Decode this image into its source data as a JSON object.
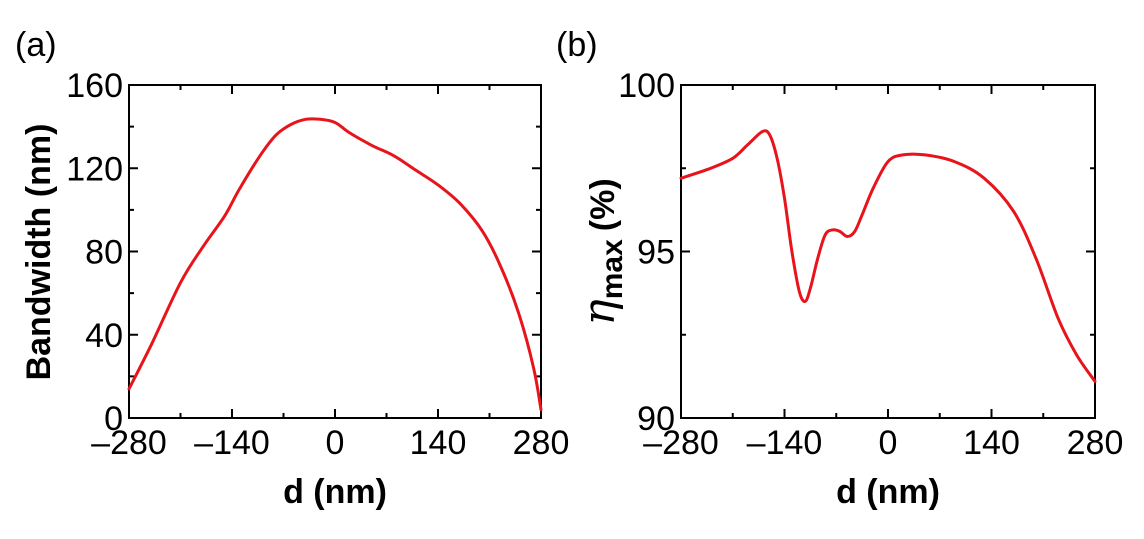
{
  "colors": {
    "line": "#e8141b",
    "axis": "#000000"
  },
  "chart_data": [
    {
      "type": "line",
      "panel_label": "(a)",
      "xlabel": "d (nm)",
      "ylabel": "Bandwidth (nm)",
      "xlim": [
        -280,
        280
      ],
      "ylim": [
        0,
        160
      ],
      "xticks": [
        -280,
        -140,
        0,
        140,
        280
      ],
      "xtick_labels": [
        "–280",
        "–140",
        "0",
        "140",
        "280"
      ],
      "yticks": [
        0,
        40,
        80,
        120,
        160
      ],
      "ytick_labels": [
        "0",
        "40",
        "80",
        "120",
        "160"
      ],
      "series": [
        {
          "name": "Bandwidth",
          "x": [
            -280,
            -250,
            -210,
            -180,
            -150,
            -130,
            -100,
            -80,
            -60,
            -40,
            -20,
            0,
            20,
            50,
            80,
            110,
            140,
            170,
            200,
            225,
            250,
            270,
            280
          ],
          "y": [
            14,
            35,
            65,
            82,
            97,
            110,
            127,
            136,
            141,
            143.5,
            143.5,
            142,
            137,
            131,
            126,
            119,
            112,
            103,
            90,
            73,
            50,
            24,
            4
          ]
        }
      ]
    },
    {
      "type": "line",
      "panel_label": "(b)",
      "xlabel": "d (nm)",
      "ylabel": "ηmax (%)",
      "ylabel_symbol": "η",
      "ylabel_subscript": "max",
      "ylabel_units": "(%)",
      "xlim": [
        -280,
        280
      ],
      "ylim": [
        90,
        100
      ],
      "xticks": [
        -280,
        -140,
        0,
        140,
        280
      ],
      "xtick_labels": [
        "–280",
        "–140",
        "0",
        "140",
        "280"
      ],
      "yticks": [
        90,
        95,
        100
      ],
      "ytick_labels": [
        "90",
        "95",
        "100"
      ],
      "series": [
        {
          "name": "ηmax",
          "x": [
            -280,
            -240,
            -210,
            -190,
            -170,
            -160,
            -150,
            -140,
            -130,
            -120,
            -112,
            -105,
            -95,
            -85,
            -75,
            -65,
            -55,
            -45,
            -35,
            -20,
            0,
            20,
            50,
            90,
            130,
            170,
            200,
            230,
            255,
            280
          ],
          "y": [
            97.2,
            97.5,
            97.8,
            98.2,
            98.6,
            98.5,
            97.8,
            96.6,
            95.0,
            93.8,
            93.5,
            93.9,
            94.8,
            95.5,
            95.65,
            95.6,
            95.45,
            95.6,
            96.1,
            96.9,
            97.7,
            97.9,
            97.9,
            97.7,
            97.2,
            96.2,
            94.8,
            93.0,
            91.9,
            91.1
          ]
        }
      ]
    }
  ]
}
